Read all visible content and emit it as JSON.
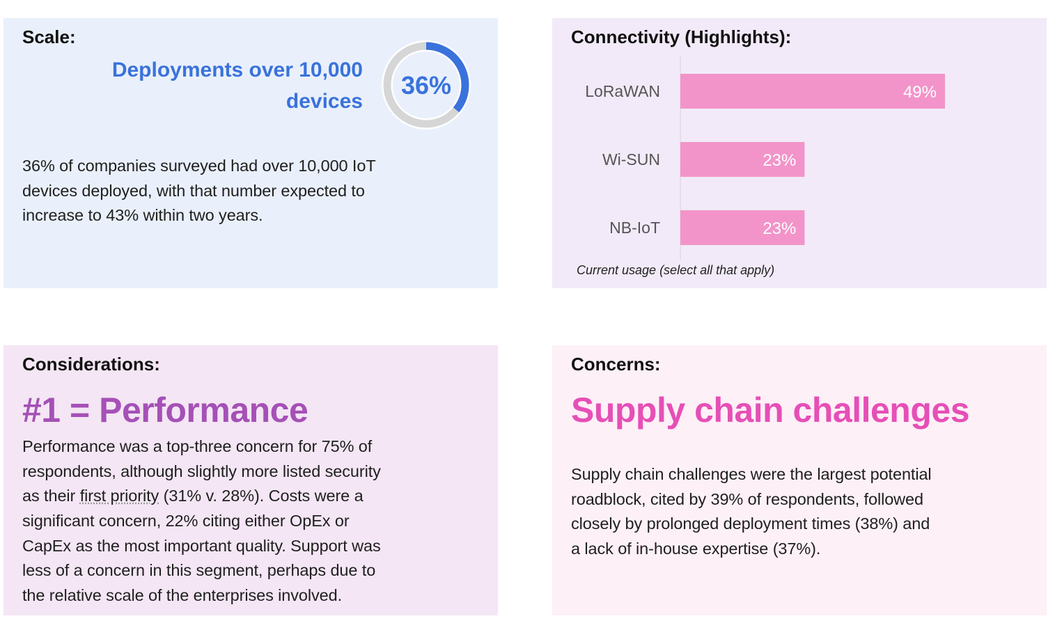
{
  "scale": {
    "title": "Scale:",
    "headline_lines": [
      "Deployments over 10,000",
      "devices"
    ],
    "donut_label": "36%",
    "donut_value_percent": 36,
    "accent_color": "#3a72dc",
    "body_lines": [
      "36% of companies surveyed had over 10,000 IoT",
      "devices deployed, with that number expected to",
      "increase to 43% within two years."
    ]
  },
  "connectivity": {
    "title": "Connectivity (Highlights):",
    "bar_color": "#f294c9",
    "note": "Current usage (select all that apply)"
  },
  "chart_data": {
    "type": "bar",
    "orientation": "horizontal",
    "categories": [
      "LoRaWAN",
      "Wi-SUN",
      "NB-IoT"
    ],
    "values": [
      49,
      23,
      23
    ],
    "data_labels": [
      "49%",
      "23%",
      "23%"
    ],
    "title": "",
    "xlabel": "",
    "ylabel": "",
    "xlim": [
      0,
      49
    ],
    "grid": false
  },
  "considerations": {
    "title": "Considerations:",
    "headline": "#1 = Performance",
    "headline_color": "#a550b7",
    "body_lines": [
      [
        "Performance was a top-three concern for 75% of"
      ],
      [
        "respondents, although slightly more listed security"
      ],
      [
        "as their ",
        "first priority",
        " (31% v. 28%). Costs were a"
      ],
      [
        "significant concern, 22% citing either OpEx or"
      ],
      [
        "CapEx as the most important quality. Support was"
      ],
      [
        "less of a concern in this segment, perhaps due to"
      ],
      [
        "the relative scale of the enterprises involved."
      ]
    ]
  },
  "concerns": {
    "title": "Concerns:",
    "headline": "Supply chain challenges",
    "headline_color": "#e64fb6",
    "body_lines": [
      "Supply chain challenges were the largest potential",
      "roadblock, cited by 39% of respondents, followed",
      "closely by prolonged deployment times (38%) and",
      "a lack of in-house expertise (37%)."
    ]
  }
}
